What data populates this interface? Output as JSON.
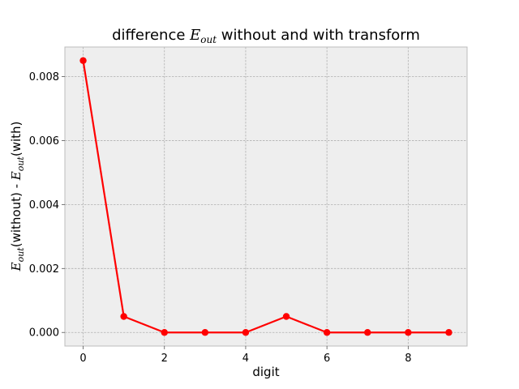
{
  "chart_data": {
    "type": "line",
    "title": {
      "before": "difference ",
      "math_main": "E",
      "math_sub": "out",
      "after": " without and with transform"
    },
    "xlabel": "digit",
    "ylabel": {
      "part1_main": "E",
      "part1_sub": "out",
      "part1_text": "(without) - ",
      "part2_main": "E",
      "part2_sub": "out",
      "part2_text": "(with)"
    },
    "xlim": [
      -0.45,
      9.45
    ],
    "ylim": [
      -0.000425,
      0.008925
    ],
    "xticks": [
      0,
      2,
      4,
      6,
      8
    ],
    "xtick_labels": [
      "0",
      "2",
      "4",
      "6",
      "8"
    ],
    "yticks": [
      0.0,
      0.002,
      0.004,
      0.006,
      0.008
    ],
    "ytick_labels": [
      "0.000",
      "0.002",
      "0.004",
      "0.006",
      "0.008"
    ],
    "grid": true,
    "series": [
      {
        "color": "#ff0000",
        "marker": "circle",
        "x": [
          0,
          1,
          2,
          3,
          4,
          5,
          6,
          7,
          8,
          9
        ],
        "y": [
          0.0085,
          0.0005,
          0.0,
          0.0,
          0.0,
          0.0005,
          0.0,
          0.0,
          0.0,
          0.0
        ]
      }
    ],
    "colors": {
      "plot_background": "#eeeeee",
      "grid": "#b0b0b0",
      "frame": "#bcbcbc"
    }
  }
}
